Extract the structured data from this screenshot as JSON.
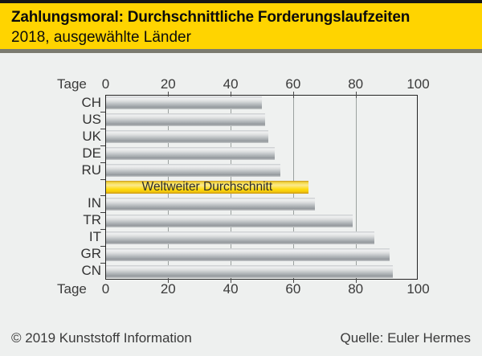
{
  "header": {
    "title": "Zahlungsmoral: Durchschnittliche Forderungslaufzeiten",
    "subtitle": "2018, ausgewählte Länder"
  },
  "chart_data": {
    "type": "bar",
    "orientation": "horizontal",
    "title": "Zahlungsmoral: Durchschnittliche Forderungslaufzeiten",
    "subtitle": "2018, ausgewählte Länder",
    "xlabel": "Tage",
    "xlim": [
      0,
      100
    ],
    "ticks": [
      0,
      20,
      40,
      60,
      80,
      100
    ],
    "grid": true,
    "categories": [
      "CH",
      "US",
      "UK",
      "DE",
      "RU",
      "Weltweiter Durchschnitt",
      "IN",
      "TR",
      "IT",
      "GR",
      "CN"
    ],
    "values": [
      50,
      51,
      52,
      54,
      56,
      65,
      67,
      79,
      86,
      91,
      92
    ],
    "highlight_index": 5,
    "highlight_label": "Weltweiter Durchschnitt",
    "colors": {
      "bar": "#b4b9bc",
      "highlight": "#ffd400",
      "grid": "#9ba19f",
      "background": "#eef0ef",
      "header": "#ffd400"
    }
  },
  "footer": {
    "copyright": "© 2019 Kunststoff Information",
    "source": "Quelle: Euler Hermes"
  }
}
